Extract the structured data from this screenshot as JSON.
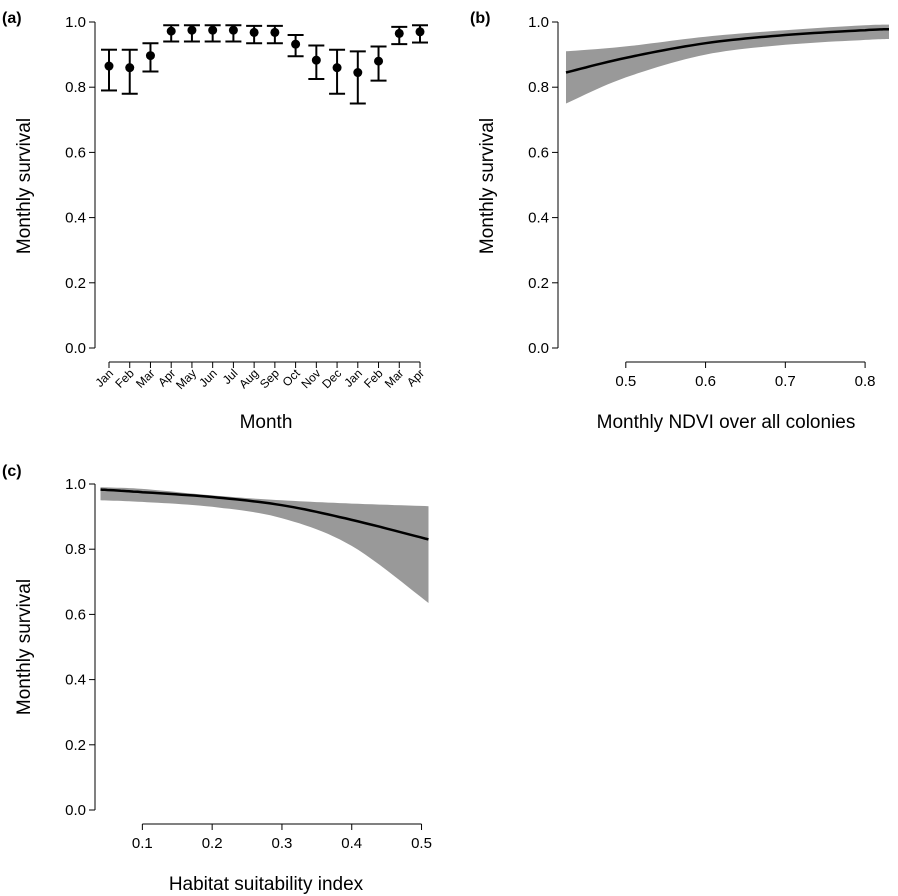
{
  "chart_data": [
    {
      "panel_label": "(a)",
      "type": "scatter",
      "xlabel": "Month",
      "ylabel": "Monthly survival",
      "ylim": [
        0,
        1
      ],
      "yticks": [
        "0.0",
        "0.2",
        "0.4",
        "0.6",
        "0.8",
        "1.0"
      ],
      "categories": [
        "Jan",
        "Feb",
        "Mar",
        "Apr",
        "May",
        "Jun",
        "Jul",
        "Aug",
        "Sep",
        "Oct",
        "Nov",
        "Dec",
        "Jan",
        "Feb",
        "Mar",
        "Apr"
      ],
      "values": [
        0.865,
        0.86,
        0.897,
        0.972,
        0.975,
        0.975,
        0.975,
        0.968,
        0.968,
        0.932,
        0.883,
        0.86,
        0.845,
        0.88,
        0.965,
        0.97
      ],
      "lower": [
        0.79,
        0.78,
        0.848,
        0.94,
        0.94,
        0.94,
        0.94,
        0.935,
        0.935,
        0.895,
        0.825,
        0.78,
        0.75,
        0.82,
        0.932,
        0.937
      ],
      "upper": [
        0.915,
        0.915,
        0.935,
        0.99,
        0.99,
        0.99,
        0.99,
        0.988,
        0.988,
        0.96,
        0.928,
        0.915,
        0.91,
        0.925,
        0.985,
        0.99
      ]
    },
    {
      "panel_label": "(b)",
      "type": "line",
      "xlabel": "Monthly NDVI over all colonies",
      "ylabel": "Monthly survival",
      "xlim": [
        0.42,
        0.835
      ],
      "ylim": [
        0,
        1
      ],
      "xticks": [
        "0.5",
        "0.6",
        "0.7",
        "0.8"
      ],
      "yticks": [
        "0.0",
        "0.2",
        "0.4",
        "0.6",
        "0.8",
        "1.0"
      ],
      "x": [
        0.425,
        0.5,
        0.6,
        0.7,
        0.8,
        0.83
      ],
      "y": [
        0.845,
        0.89,
        0.935,
        0.96,
        0.975,
        0.978
      ],
      "lower": [
        0.75,
        0.83,
        0.9,
        0.93,
        0.945,
        0.948
      ],
      "upper": [
        0.91,
        0.925,
        0.955,
        0.975,
        0.99,
        0.992
      ]
    },
    {
      "panel_label": "(c)",
      "type": "line",
      "xlabel": "Habitat suitability index",
      "ylabel": "Monthly survival",
      "xlim": [
        0.035,
        0.515
      ],
      "ylim": [
        0,
        1
      ],
      "xticks": [
        "0.1",
        "0.2",
        "0.3",
        "0.4",
        "0.5"
      ],
      "yticks": [
        "0.0",
        "0.2",
        "0.4",
        "0.6",
        "0.8",
        "1.0"
      ],
      "x": [
        0.04,
        0.1,
        0.2,
        0.3,
        0.4,
        0.51
      ],
      "y": [
        0.983,
        0.975,
        0.96,
        0.935,
        0.89,
        0.83
      ],
      "lower": [
        0.95,
        0.945,
        0.93,
        0.895,
        0.81,
        0.635
      ],
      "upper": [
        0.99,
        0.985,
        0.965,
        0.95,
        0.94,
        0.932
      ]
    }
  ]
}
